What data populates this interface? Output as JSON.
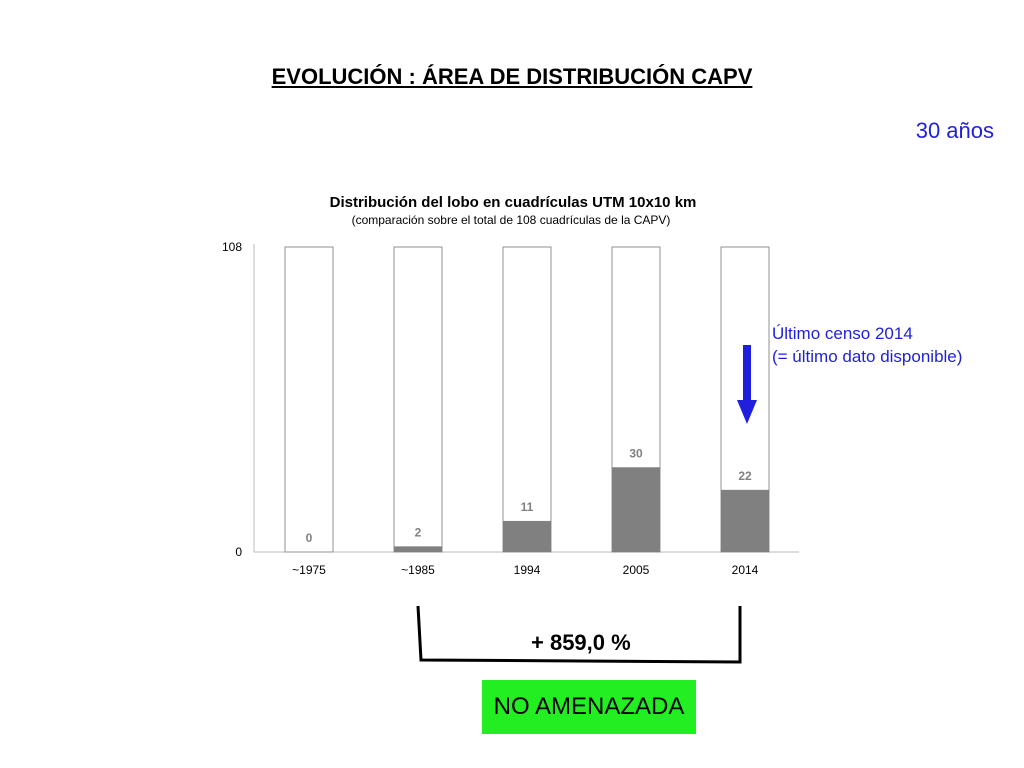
{
  "page": {
    "title": "EVOLUCIÓN : ÁREA DE DISTRIBUCIÓN CAPV",
    "period_label": "30 años",
    "note_line1": "Último censo 2014",
    "note_line2": "(= último dato disponible)",
    "change_label": "+ 859,0 %",
    "status_label": "NO AMENAZADA"
  },
  "colors": {
    "filled": "#808080",
    "bar_outline": "#909090",
    "accent_blue": "#1f1fdc",
    "status_green": "#22ee22"
  },
  "chart_data": {
    "type": "bar",
    "title": "Distribución del lobo en cuadrículas UTM 10x10 km",
    "subtitle": "(comparación sobre el total de 108 cuadrículas de la CAPV)",
    "categories": [
      "~1975",
      "~1985",
      "1994",
      "2005",
      "2014"
    ],
    "values": [
      0,
      2,
      11,
      30,
      22
    ],
    "total": 108,
    "ylim": [
      0,
      108
    ],
    "yticks": [
      0,
      108
    ],
    "grid": false,
    "legend": "none"
  }
}
